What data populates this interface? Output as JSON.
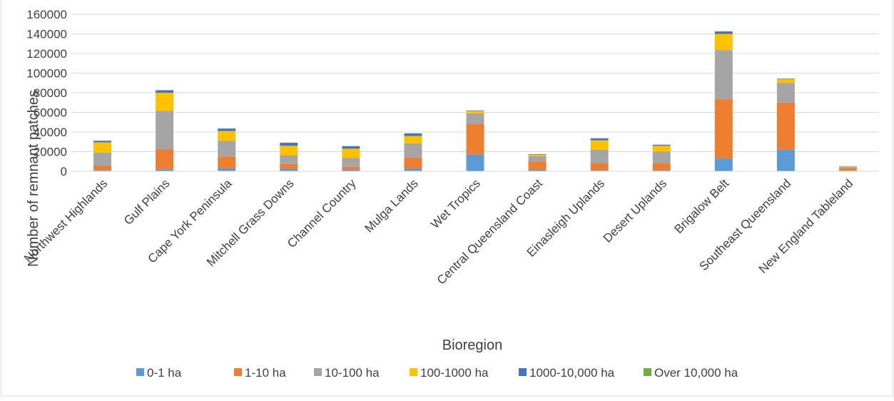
{
  "chart_data": {
    "type": "bar",
    "stacked": true,
    "title": "",
    "xlabel": "Bioregion",
    "ylabel": "Number of remnant patches",
    "ylim": [
      0,
      160000
    ],
    "y_ticks": [
      "0",
      "20000",
      "40000",
      "60000",
      "80000",
      "100000",
      "120000",
      "140000",
      "160000"
    ],
    "grid": true,
    "legend_position": "bottom",
    "categories": [
      "Northwest Highlands",
      "Gulf Plains",
      "Cape York Peninsula",
      "Mitchell Grass Downs",
      "Channel Country",
      "Mulga Lands",
      "Wet Tropics",
      "Central Queensland Coast",
      "Einasleigh Uplands",
      "Desert Uplands",
      "Brigalow Belt",
      "Southeast Queensland",
      "New England Tableland"
    ],
    "series": [
      {
        "name": "0-1 ha",
        "color": "#5B9BD5",
        "values": [
          1000,
          2000,
          3000,
          2500,
          1500,
          2500,
          17000,
          1500,
          1000,
          1000,
          13000,
          22000,
          500
        ]
      },
      {
        "name": "1-10 ha",
        "color": "#ED7D31",
        "values": [
          4500,
          20500,
          12000,
          5000,
          3000,
          11500,
          31000,
          8500,
          7000,
          7000,
          60500,
          48000,
          2500
        ]
      },
      {
        "name": "10-100 ha",
        "color": "#A5A5A5",
        "values": [
          13500,
          39000,
          16000,
          8500,
          9000,
          14500,
          11000,
          5500,
          14000,
          12000,
          50000,
          20000,
          1500
        ]
      },
      {
        "name": "100-1000 ha",
        "color": "#FFC000",
        "values": [
          10500,
          18500,
          10000,
          10000,
          9500,
          7500,
          2500,
          1500,
          9500,
          6000,
          16500,
          4000,
          500
        ]
      },
      {
        "name": "1000-10,000 ha",
        "color": "#4472C4",
        "values": [
          1500,
          2500,
          2500,
          3000,
          2500,
          2500,
          500,
          500,
          2000,
          1000,
          2500,
          500,
          200
        ]
      },
      {
        "name": "Over 10,000 ha",
        "color": "#70AD47",
        "values": [
          200,
          200,
          200,
          200,
          200,
          200,
          50,
          50,
          200,
          100,
          200,
          50,
          50
        ]
      }
    ]
  }
}
